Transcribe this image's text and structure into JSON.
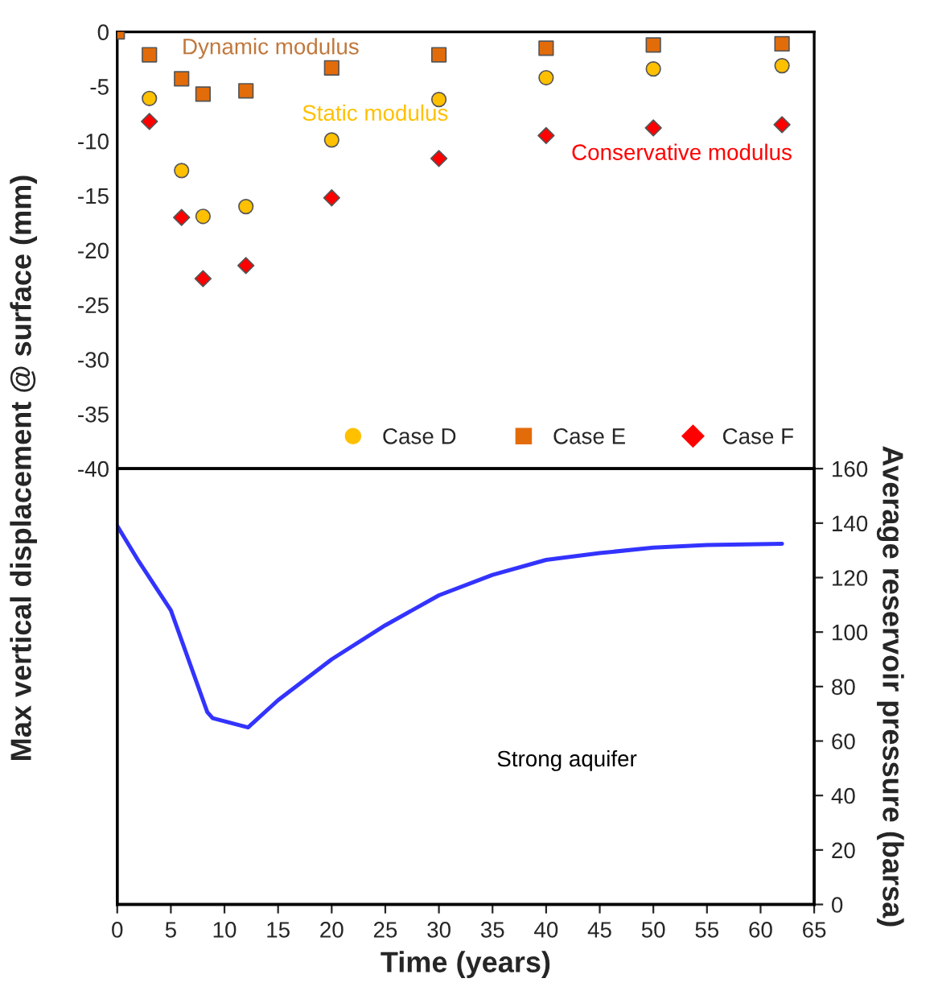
{
  "chart_data": [
    {
      "type": "scatter",
      "ylabel": "Max vertical displacement @ surface (mm)",
      "xlim": [
        0,
        65
      ],
      "ylim": [
        -40,
        0
      ],
      "yticks": [
        -40,
        -35,
        -30,
        -25,
        -20,
        -15,
        -10,
        -5,
        0
      ],
      "tick_labels": "y",
      "grid": false,
      "legend": "bottom right",
      "x": [
        0,
        3,
        6,
        8,
        12,
        20,
        30,
        40,
        50,
        62
      ],
      "series": [
        {
          "name": "Case D",
          "color": "#ffc000",
          "marker": "circle",
          "values": [
            null,
            -6.1,
            -12.7,
            -16.9,
            -16.0,
            -9.9,
            -6.2,
            -4.2,
            -3.4,
            -3.1
          ]
        },
        {
          "name": "Case E",
          "color": "#e36c0a",
          "marker": "square",
          "values": [
            0,
            -2.1,
            -4.3,
            -5.7,
            -5.4,
            -3.3,
            -2.1,
            -1.5,
            -1.2,
            -1.1
          ]
        },
        {
          "name": "Case F",
          "color": "#ff0000",
          "marker": "diamond",
          "values": [
            null,
            -8.2,
            -17.0,
            -22.6,
            -21.4,
            -15.2,
            -11.6,
            -9.5,
            -8.8,
            -8.5
          ]
        }
      ],
      "annotations": [
        "Static modulus",
        "Dynamic modulus",
        "Conservative modulus"
      ]
    },
    {
      "type": "line",
      "xlabel": "Time (years)",
      "y2label": "Average reservoir pressure (barsa)",
      "xlim": [
        0,
        65
      ],
      "xticks": [
        0,
        5,
        10,
        15,
        20,
        25,
        30,
        35,
        40,
        45,
        50,
        55,
        60,
        65
      ],
      "y2lim": [
        0,
        160
      ],
      "y2ticks": [
        0,
        20,
        40,
        60,
        80,
        100,
        120,
        140,
        160
      ],
      "grid": false,
      "series": [
        {
          "axis": "y2",
          "color": "#3333ff",
          "x": [
            0,
            2,
            5,
            8.4,
            8.9,
            12.2,
            15,
            20,
            25,
            30,
            35,
            40,
            45,
            50,
            55,
            62
          ],
          "values": [
            139,
            126,
            108,
            70.6,
            68.4,
            65,
            75,
            90,
            102.5,
            113.5,
            121,
            126.5,
            129,
            131,
            132,
            132.4
          ]
        }
      ],
      "annotations": [
        "Strong aquifer"
      ]
    }
  ]
}
